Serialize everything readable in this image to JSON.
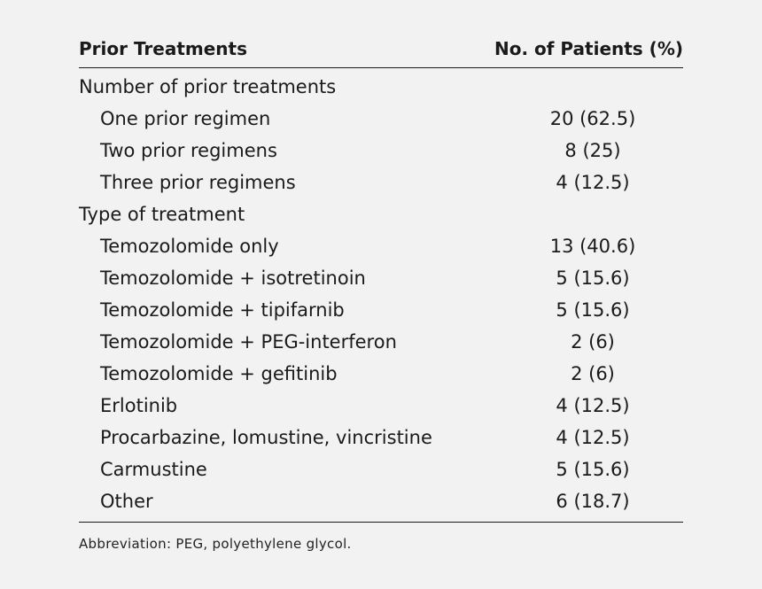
{
  "table": {
    "header": {
      "col1": "Prior Treatments",
      "col2": "No. of Patients (%)"
    },
    "rows": [
      {
        "kind": "section",
        "label": "Number of prior treatments",
        "value": ""
      },
      {
        "kind": "item",
        "label": "One prior regimen",
        "value": "20 (62.5)"
      },
      {
        "kind": "item",
        "label": "Two prior regimens",
        "value": "8 (25)"
      },
      {
        "kind": "item",
        "label": "Three prior regimens",
        "value": "4 (12.5)"
      },
      {
        "kind": "section",
        "label": "Type of treatment",
        "value": ""
      },
      {
        "kind": "item",
        "label": "Temozolomide only",
        "value": "13 (40.6)"
      },
      {
        "kind": "item",
        "label": "Temozolomide + isotretinoin",
        "value": "5 (15.6)"
      },
      {
        "kind": "item",
        "label": "Temozolomide + tipifarnib",
        "value": "5 (15.6)"
      },
      {
        "kind": "item",
        "label": "Temozolomide + PEG-interferon",
        "value": "2 (6)"
      },
      {
        "kind": "item",
        "label": "Temozolomide + gefitinib",
        "value": "2 (6)"
      },
      {
        "kind": "item",
        "label": "Erlotinib",
        "value": "4 (12.5)"
      },
      {
        "kind": "item",
        "label": "Procarbazine, lomustine, vincristine",
        "value": "4 (12.5)"
      },
      {
        "kind": "item",
        "label": "Carmustine",
        "value": "5 (15.6)"
      },
      {
        "kind": "item",
        "label": "Other",
        "value": "6 (18.7)"
      }
    ]
  },
  "footnote": "Abbreviation: PEG, polyethylene glycol."
}
